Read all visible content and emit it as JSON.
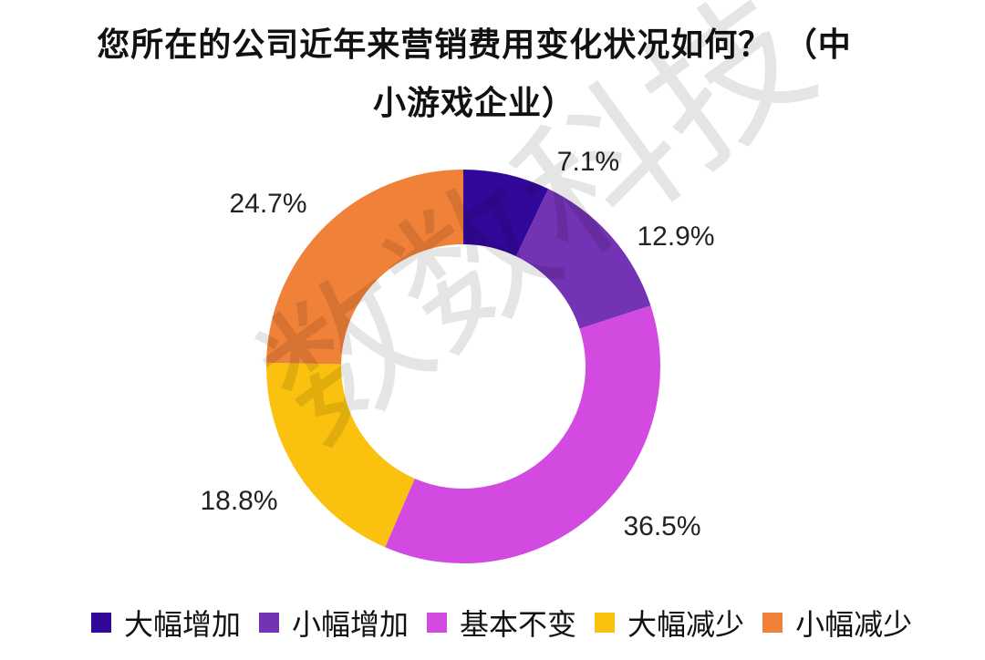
{
  "title_line1": "您所在的公司近年来营销费用变化状况如何？ （中",
  "title_line2": "小游戏企业）",
  "watermark": "数数科技",
  "chart_data": {
    "type": "pie",
    "donut": true,
    "categories": [
      "大幅增加",
      "小幅增加",
      "基本不变",
      "大幅减少",
      "小幅减少"
    ],
    "values": [
      7.1,
      12.9,
      36.5,
      18.8,
      24.7
    ],
    "labels": [
      "7.1%",
      "12.9%",
      "36.5%",
      "18.8%",
      "24.7%"
    ],
    "colors": [
      "#32089a",
      "#7432b4",
      "#d24ae0",
      "#fac10f",
      "#ef8138"
    ],
    "legend_position": "bottom"
  }
}
